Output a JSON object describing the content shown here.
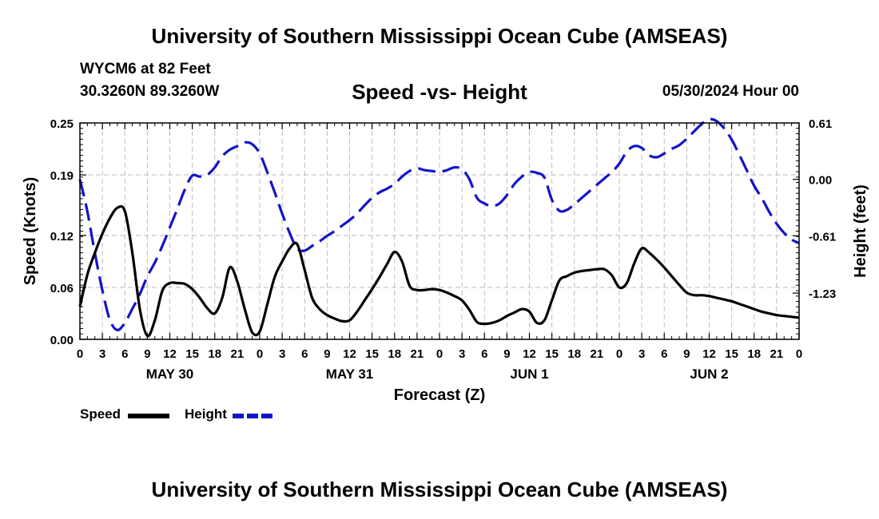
{
  "header": {
    "title": "University of Southern Mississippi Ocean Cube (AMSEAS)",
    "station": "WYCM6 at 82 Feet",
    "coords": "30.3260N  89.3260W",
    "subtitle": "Speed -vs- Height",
    "run_date": "05/30/2024 Hour 00"
  },
  "footer": {
    "title": "University of Southern Mississippi Ocean Cube (AMSEAS)"
  },
  "legend": {
    "speed_label": "Speed",
    "height_label": "Height"
  },
  "colors": {
    "speed": "#000000",
    "height": "#1414c8",
    "grid": "#bbbbbb"
  },
  "chart_data": {
    "type": "line",
    "title": "Speed -vs- Height",
    "xlabel": "Forecast (Z)",
    "ylabel": "Speed (Knots)",
    "y2label": "Height (feet)",
    "xlim": [
      0,
      96
    ],
    "ylim": [
      0,
      0.25
    ],
    "y2lim": [
      -1.73,
      0.61
    ],
    "x_tick_labels": [
      "0",
      "3",
      "6",
      "9",
      "12",
      "15",
      "18",
      "21",
      "0",
      "3",
      "6",
      "9",
      "12",
      "15",
      "18",
      "21",
      "0",
      "3",
      "6",
      "9",
      "12",
      "15",
      "18",
      "21",
      "0",
      "3",
      "6",
      "9",
      "12",
      "15",
      "18",
      "21",
      "0"
    ],
    "date_labels": [
      {
        "hour": 12,
        "label": "MAY 30"
      },
      {
        "hour": 36,
        "label": "MAY 31"
      },
      {
        "hour": 60,
        "label": "JUN 1"
      },
      {
        "hour": 84,
        "label": "JUN 2"
      }
    ],
    "y_ticks": [
      "0.00",
      "0.06",
      "0.12",
      "0.19",
      "0.25"
    ],
    "y2_ticks": [
      "0.61",
      "0.00",
      "-0.61",
      "-1.23"
    ],
    "series": [
      {
        "name": "Speed",
        "axis": "left",
        "x": [
          0,
          1,
          2,
          3,
          4,
          5,
          6,
          7,
          8,
          9,
          10,
          11,
          12,
          13,
          14,
          15,
          16,
          17,
          18,
          19,
          20,
          21,
          22,
          23,
          24,
          25,
          26,
          27,
          28,
          29,
          30,
          31,
          32,
          33,
          34,
          35,
          36,
          37,
          38,
          39,
          40,
          41,
          42,
          43,
          44,
          45,
          46,
          47,
          48,
          49,
          50,
          51,
          52,
          53,
          54,
          55,
          56,
          57,
          58,
          59,
          60,
          61,
          62,
          63,
          64,
          65,
          66,
          67,
          68,
          69,
          70,
          71,
          72,
          73,
          74,
          75,
          76,
          77,
          78,
          79,
          80,
          81,
          82,
          83,
          84,
          85,
          86,
          87,
          88,
          89,
          90,
          91,
          92,
          93,
          94,
          95,
          96
        ],
        "values": [
          0.038,
          0.075,
          0.1,
          0.122,
          0.14,
          0.152,
          0.148,
          0.1,
          0.035,
          0.004,
          0.022,
          0.056,
          0.065,
          0.065,
          0.064,
          0.058,
          0.048,
          0.036,
          0.03,
          0.048,
          0.083,
          0.067,
          0.035,
          0.008,
          0.009,
          0.04,
          0.072,
          0.09,
          0.105,
          0.11,
          0.08,
          0.048,
          0.035,
          0.028,
          0.024,
          0.021,
          0.022,
          0.032,
          0.045,
          0.058,
          0.072,
          0.087,
          0.101,
          0.09,
          0.062,
          0.057,
          0.057,
          0.058,
          0.057,
          0.054,
          0.05,
          0.045,
          0.034,
          0.02,
          0.018,
          0.019,
          0.022,
          0.027,
          0.031,
          0.035,
          0.032,
          0.019,
          0.022,
          0.045,
          0.068,
          0.073,
          0.077,
          0.079,
          0.08,
          0.081,
          0.081,
          0.074,
          0.06,
          0.065,
          0.088,
          0.105,
          0.1,
          0.092,
          0.083,
          0.073,
          0.063,
          0.054,
          0.051,
          0.051,
          0.05,
          0.048,
          0.046,
          0.044,
          0.041,
          0.038,
          0.035,
          0.032,
          0.03,
          0.028,
          0.027,
          0.026,
          0.025
        ]
      },
      {
        "name": "Height",
        "axis": "right",
        "x": [
          0,
          1,
          2,
          3,
          4,
          5,
          6,
          7,
          8,
          9,
          10,
          11,
          12,
          13,
          14,
          15,
          16,
          17,
          18,
          19,
          20,
          21,
          22,
          23,
          24,
          25,
          26,
          27,
          28,
          29,
          30,
          31,
          32,
          33,
          34,
          35,
          36,
          37,
          38,
          39,
          40,
          41,
          42,
          43,
          44,
          45,
          46,
          47,
          48,
          49,
          50,
          51,
          52,
          53,
          54,
          55,
          56,
          57,
          58,
          59,
          60,
          61,
          62,
          63,
          64,
          65,
          66,
          67,
          68,
          69,
          70,
          71,
          72,
          73,
          74,
          75,
          76,
          77,
          78,
          79,
          80,
          81,
          82,
          83,
          84,
          85,
          86,
          87,
          88,
          89,
          90,
          91,
          92,
          93,
          94,
          95,
          96
        ],
        "values": [
          0.0,
          -0.35,
          -0.8,
          -1.2,
          -1.52,
          -1.63,
          -1.55,
          -1.4,
          -1.24,
          -1.05,
          -0.9,
          -0.72,
          -0.52,
          -0.32,
          -0.11,
          0.04,
          0.03,
          0.05,
          0.13,
          0.25,
          0.32,
          0.36,
          0.4,
          0.38,
          0.28,
          0.08,
          -0.14,
          -0.37,
          -0.58,
          -0.75,
          -0.77,
          -0.72,
          -0.67,
          -0.61,
          -0.56,
          -0.5,
          -0.44,
          -0.37,
          -0.28,
          -0.2,
          -0.14,
          -0.1,
          -0.05,
          0.03,
          0.09,
          0.12,
          0.1,
          0.09,
          0.08,
          0.1,
          0.13,
          0.11,
          0.0,
          -0.2,
          -0.26,
          -0.29,
          -0.26,
          -0.17,
          -0.05,
          0.03,
          0.08,
          0.07,
          0.02,
          -0.22,
          -0.34,
          -0.33,
          -0.27,
          -0.2,
          -0.13,
          -0.06,
          0.01,
          0.08,
          0.17,
          0.3,
          0.36,
          0.34,
          0.26,
          0.24,
          0.28,
          0.33,
          0.37,
          0.44,
          0.52,
          0.6,
          0.65,
          0.63,
          0.55,
          0.43,
          0.27,
          0.1,
          -0.07,
          -0.2,
          -0.35,
          -0.48,
          -0.58,
          -0.65,
          -0.69
        ]
      }
    ]
  }
}
